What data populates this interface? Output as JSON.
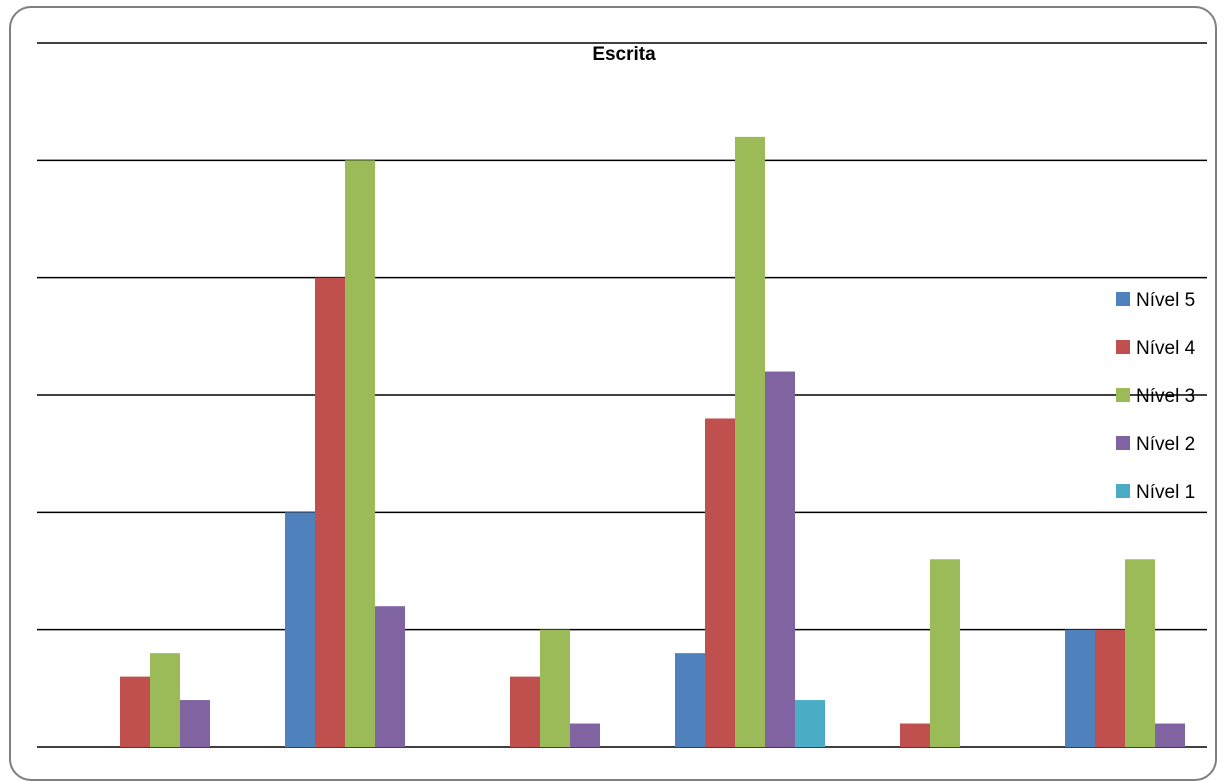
{
  "chart_data": {
    "type": "bar",
    "title": "Escrita",
    "xlabel": "",
    "ylabel": "",
    "ylim": [
      0,
      30
    ],
    "grid": true,
    "legend_position": "right",
    "categories": [
      "",
      "",
      "",
      "",
      "",
      ""
    ],
    "series": [
      {
        "name": "Nível 5",
        "color": "#4F81BD",
        "values": [
          0,
          10,
          0,
          4,
          0,
          5
        ]
      },
      {
        "name": "Nível 4",
        "color": "#C0504D",
        "values": [
          3,
          20,
          3,
          14,
          1,
          5
        ]
      },
      {
        "name": "Nível 3",
        "color": "#9BBB59",
        "values": [
          4,
          25,
          5,
          26,
          8,
          8
        ]
      },
      {
        "name": "Nível 2",
        "color": "#8064A2",
        "values": [
          2,
          6,
          1,
          16,
          0,
          1
        ]
      },
      {
        "name": "Nível 1",
        "color": "#4BACC6",
        "values": [
          0,
          0,
          0,
          2,
          0,
          0
        ]
      }
    ]
  }
}
